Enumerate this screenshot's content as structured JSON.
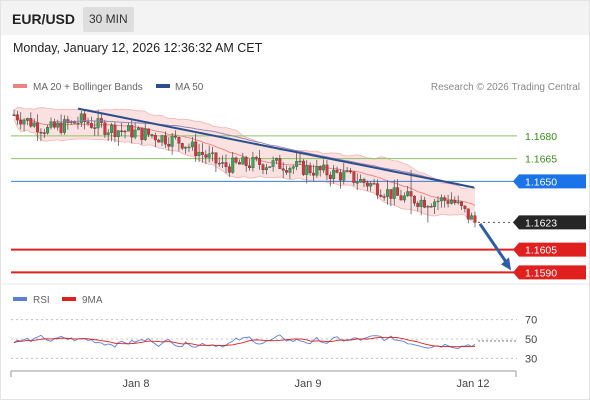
{
  "header": {
    "pair": "EUR/USD",
    "timeframe": "30 MIN"
  },
  "datetime": "Monday, January 12, 2026 12:36:32 AM CET",
  "legend": {
    "bollinger": "MA 20 + Bollinger Bands",
    "ma50": "MA 50"
  },
  "credit": "Research © 2026 Trading Central",
  "colors": {
    "bollinger": "#f08080",
    "ma50": "#2b4f8e",
    "resistance": "#7ab648",
    "pivot": "#3a7bd5",
    "support": "#e0201f",
    "last": "#222222"
  },
  "chart_data": [
    {
      "type": "candlestick",
      "x_labels": [
        "Jan 8",
        "Jan 9",
        "Jan 12"
      ],
      "price_levels": [
        {
          "value": 1.168,
          "label": "1.1680",
          "kind": "resistance"
        },
        {
          "value": 1.1665,
          "label": "1.1665",
          "kind": "resistance"
        },
        {
          "value": 1.165,
          "label": "1.1650",
          "kind": "pivot"
        },
        {
          "value": 1.1623,
          "label": "1.1623",
          "kind": "last"
        },
        {
          "value": 1.1605,
          "label": "1.1605",
          "kind": "support"
        },
        {
          "value": 1.159,
          "label": "1.1590",
          "kind": "support"
        }
      ],
      "ylim": [
        1.1585,
        1.1705
      ],
      "trend_line": {
        "from": 1.1698,
        "to": 1.1646
      },
      "forecast_arrow": {
        "from": 1.1622,
        "to": 1.1592
      }
    },
    {
      "type": "line",
      "series": [
        {
          "name": "RSI"
        },
        {
          "name": "9MA"
        }
      ],
      "y_ticks": [
        "70",
        "50",
        "30"
      ],
      "ylim": [
        20,
        80
      ]
    }
  ],
  "rsi_legend": {
    "rsi": "RSI",
    "ma9": "9MA"
  }
}
